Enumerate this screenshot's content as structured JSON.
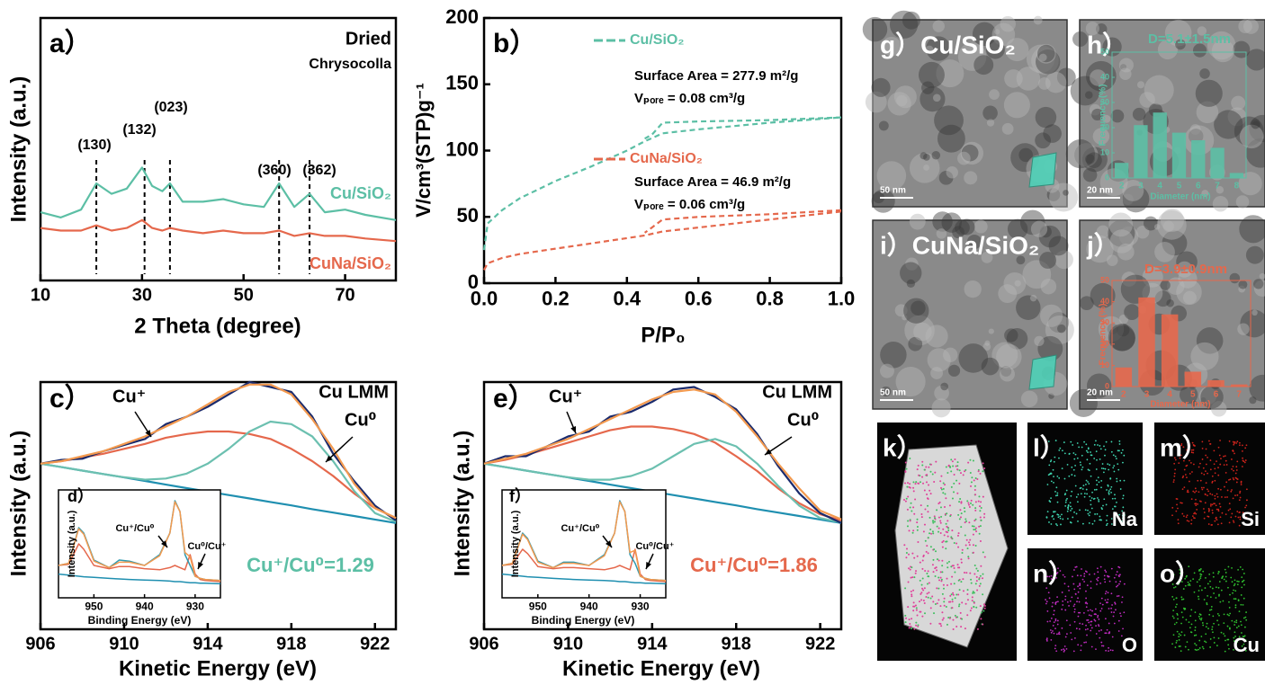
{
  "chart_data": [
    {
      "type": "line",
      "label": "a）",
      "title": "Dried",
      "annotation": "Chrysocolla",
      "xlabel": "2 Theta (degree)",
      "ylabel": "Intensity (a.u.)",
      "xlim": [
        10,
        80
      ],
      "xticks": [
        10,
        30,
        50,
        70
      ],
      "ylim": [
        0,
        100
      ],
      "x": [
        10,
        14,
        18,
        21,
        24,
        27,
        30,
        32,
        34,
        35.5,
        38,
        42,
        46,
        50,
        54,
        57,
        60,
        63,
        66,
        70,
        74,
        80
      ],
      "series": [
        {
          "name": "Cu/SiO₂",
          "color": "#5cbfa5",
          "values": [
            26,
            24,
            27,
            37,
            33,
            35,
            43,
            36,
            34,
            37,
            30,
            30,
            31,
            29,
            28,
            37,
            28,
            33,
            26,
            27,
            25,
            23
          ]
        },
        {
          "name": "CuNa/SiO₂",
          "color": "#e5684c",
          "values": [
            20,
            19,
            19,
            21,
            19,
            20,
            23,
            20,
            19,
            20,
            19,
            18,
            19,
            18,
            18,
            19,
            17,
            18,
            17,
            17,
            16,
            15
          ]
        }
      ],
      "peaks": [
        {
          "x": 21,
          "label": "(130)"
        },
        {
          "x": 30.5,
          "label": "(132)"
        },
        {
          "x": 35.5,
          "label": "(023)"
        },
        {
          "x": 57,
          "label": "(360)"
        },
        {
          "x": 63,
          "label": "(362)"
        }
      ]
    },
    {
      "type": "line",
      "label": "b）",
      "xlabel": "P/P₀",
      "ylabel": "V/cm³(STP)g⁻¹",
      "dashed": true,
      "xlim": [
        0,
        1
      ],
      "xticks": [
        {
          "value": 0,
          "label": "0.0"
        },
        0.2,
        0.4,
        0.6,
        0.8,
        {
          "value": 1,
          "label": "1.0"
        }
      ],
      "ylim": [
        0,
        200
      ],
      "yticks": [
        0,
        50,
        100,
        150,
        200
      ],
      "series": [
        {
          "name": "Cu/SiO₂",
          "color": "#5cbfa5",
          "surface_area": "Surface Area = 277.9 m²/g",
          "pore_volume": "Vₚₒᵣₑ = 0.08 cm³/g",
          "x": [
            0,
            0.01,
            0.05,
            0.1,
            0.2,
            0.3,
            0.4,
            0.45,
            0.5,
            0.6,
            0.8,
            1.0
          ],
          "values": [
            25,
            45,
            55,
            64,
            77,
            88,
            100,
            107,
            113,
            116,
            121,
            125
          ],
          "desorption": {
            "x": [
              1.0,
              0.8,
              0.6,
              0.5,
              0.49,
              0.47,
              0.45
            ],
            "values": [
              125,
              123,
              122,
              121,
              118,
              112,
              109
            ]
          }
        },
        {
          "name": "CuNa/SiO₂",
          "color": "#e5684c",
          "surface_area": "Surface Area = 46.9 m²/g",
          "pore_volume": "Vₚₒᵣₑ = 0.06 cm³/g",
          "x": [
            0,
            0.01,
            0.05,
            0.1,
            0.2,
            0.3,
            0.4,
            0.45,
            0.5,
            0.6,
            0.8,
            1.0
          ],
          "values": [
            10,
            15,
            19,
            22,
            26,
            30,
            34,
            36,
            39,
            42,
            48,
            54
          ],
          "desorption": {
            "x": [
              1.0,
              0.8,
              0.6,
              0.5,
              0.49,
              0.47,
              0.45
            ],
            "values": [
              55,
              52,
              50,
              48,
              46,
              42,
              38
            ]
          }
        }
      ]
    },
    {
      "type": "line",
      "label": "c）",
      "xlabel": "Kinetic Energy (eV)",
      "ylabel": "Intensity (a.u.)",
      "annotations": [
        "Cu LMM",
        "Cu⁺",
        "Cu⁰",
        "Cu⁺/Cu⁰=1.29"
      ],
      "xlim": [
        906,
        923
      ],
      "xticks": [
        906,
        910,
        914,
        918,
        922
      ],
      "ylim": [
        0,
        100
      ],
      "x": [
        906,
        907,
        908,
        909,
        910,
        911,
        912,
        913,
        914,
        915,
        916,
        917,
        918,
        919,
        920,
        921,
        922,
        923
      ],
      "series": [
        {
          "color": "#1f8fb0",
          "values": [
            67,
            65.6,
            64.2,
            62.8,
            61.4,
            60,
            58.5,
            57.1,
            55.7,
            54.3,
            52.9,
            51.5,
            50.1,
            48.6,
            47.2,
            45.8,
            44.4,
            43
          ]
        },
        {
          "color": "#e5684c",
          "values": [
            67,
            68,
            69.5,
            71,
            73,
            75,
            77.5,
            79,
            80,
            80,
            79,
            77,
            73,
            68,
            62,
            55,
            49,
            45
          ]
        },
        {
          "color": "#6cc0b0",
          "values": [
            67,
            65.6,
            64.2,
            62.8,
            61.5,
            60.5,
            61,
            63,
            67,
            73,
            80,
            84,
            83,
            78,
            68,
            56,
            47,
            43.5
          ]
        },
        {
          "color": "#1a2a6c",
          "values": [
            67,
            68.5,
            69,
            72,
            74.5,
            77,
            83,
            86,
            90,
            95,
            100,
            98,
            96,
            86,
            71,
            60,
            50,
            44
          ]
        },
        {
          "color": "#f39a4f",
          "values": [
            67,
            68,
            70,
            72,
            75,
            78,
            82,
            86,
            91,
            96,
            99,
            99,
            95,
            85,
            73,
            59,
            49,
            45
          ]
        }
      ]
    },
    {
      "type": "line",
      "label": "d）",
      "xlabel": "Binding Energy (eV)",
      "ylabel": "Intensity (a.u.)",
      "annotations": [
        "Cu⁺/Cu⁰",
        "Cu⁰/Cu⁺"
      ],
      "xlim": [
        957,
        925
      ],
      "xticks": [
        950,
        940,
        930
      ],
      "ylim": [
        0,
        100
      ],
      "x": [
        957,
        955,
        953,
        952,
        950,
        947,
        945,
        943,
        940,
        937,
        935,
        934,
        933,
        932,
        931,
        930,
        929,
        928,
        925
      ],
      "series": [
        {
          "color": "#1f8fb0",
          "values": [
            22,
            21,
            20,
            19.5,
            19,
            18,
            17.5,
            17,
            16.5,
            16,
            15.5,
            15,
            15,
            14.5,
            14,
            14,
            13.5,
            13.5,
            13
          ]
        },
        {
          "color": "#e5684c",
          "values": [
            30,
            31,
            50,
            45,
            30,
            27,
            29,
            29,
            27,
            26,
            28,
            30,
            28,
            26,
            40,
            22,
            17,
            16,
            15
          ]
        },
        {
          "color": "#2f9ab0",
          "values": [
            30,
            32,
            65,
            60,
            35,
            28,
            35,
            34,
            30,
            40,
            60,
            90,
            80,
            40,
            30,
            20,
            18,
            17,
            16
          ]
        },
        {
          "color": "#f39a4f",
          "values": [
            30,
            32,
            64,
            59,
            34,
            28,
            33,
            33,
            30,
            39,
            60,
            89,
            80,
            42,
            38,
            20,
            18,
            17,
            16
          ]
        }
      ]
    },
    {
      "type": "line",
      "label": "e）",
      "xlabel": "Kinetic Energy (eV)",
      "ylabel": "Intensity (a.u.)",
      "annotations": [
        "Cu LMM",
        "Cu⁺",
        "Cu⁰",
        "Cu⁺/Cu⁰=1.86"
      ],
      "xlim": [
        906,
        923
      ],
      "xticks": [
        906,
        910,
        914,
        918,
        922
      ],
      "ylim": [
        0,
        100
      ],
      "x": [
        906,
        907,
        908,
        909,
        910,
        911,
        912,
        913,
        914,
        915,
        916,
        917,
        918,
        919,
        920,
        921,
        922,
        923
      ],
      "series": [
        {
          "color": "#1f8fb0",
          "values": [
            67,
            65.6,
            64.2,
            62.8,
            61.4,
            60,
            58.5,
            57.1,
            55.7,
            54.3,
            52.9,
            51.5,
            50.1,
            48.6,
            47.2,
            45.8,
            44.4,
            43
          ]
        },
        {
          "color": "#e5684c",
          "values": [
            67,
            68.5,
            70.5,
            73,
            75.5,
            78,
            80.5,
            82,
            82,
            81,
            79,
            75.5,
            70,
            64,
            57,
            51,
            46.5,
            44
          ]
        },
        {
          "color": "#6cc0b0",
          "values": [
            67,
            65.6,
            64.2,
            62.8,
            61.5,
            60.5,
            60.5,
            62,
            65,
            70,
            75,
            77,
            74,
            67,
            58,
            50,
            45,
            43.2
          ]
        },
        {
          "color": "#1a2a6c",
          "values": [
            67,
            70,
            70,
            74,
            78,
            80,
            86,
            88,
            92,
            97,
            98,
            94,
            89,
            79,
            66,
            55,
            47,
            43
          ]
        },
        {
          "color": "#f39a4f",
          "values": [
            67,
            69,
            71,
            74,
            77,
            81,
            85,
            89,
            93,
            96,
            97,
            95,
            88,
            78,
            67,
            57,
            48,
            44.5
          ]
        }
      ]
    },
    {
      "type": "line",
      "label": "f）",
      "xlabel": "Binding Energy (eV)",
      "ylabel": "Intensity (a.u.)",
      "annotations": [
        "Cu⁺/Cu⁰",
        "Cu⁰/Cu⁺"
      ],
      "xlim": [
        957,
        925
      ],
      "xticks": [
        950,
        940,
        930
      ],
      "ylim": [
        0,
        100
      ],
      "x": [
        957,
        955,
        953,
        952,
        950,
        947,
        945,
        943,
        940,
        937,
        935,
        934,
        933,
        932,
        931,
        930,
        929,
        928,
        925
      ],
      "series": [
        {
          "color": "#1f8fb0",
          "values": [
            22,
            21,
            20,
            19.5,
            19,
            18,
            17.5,
            17,
            16.5,
            16,
            15.5,
            15,
            15,
            14.5,
            14,
            14,
            13.5,
            13.5,
            13
          ]
        },
        {
          "color": "#e5684c",
          "values": [
            30,
            31,
            45,
            41,
            29,
            27,
            28,
            28,
            27,
            26,
            28,
            30,
            28,
            26,
            45,
            22,
            17,
            16,
            15
          ]
        },
        {
          "color": "#2f9ab0",
          "values": [
            30,
            32,
            60,
            55,
            34,
            28,
            33,
            33,
            30,
            40,
            60,
            90,
            80,
            40,
            32,
            20,
            18,
            17,
            16
          ]
        },
        {
          "color": "#f39a4f",
          "values": [
            30,
            32,
            59,
            54,
            33,
            28,
            32,
            32,
            30,
            39,
            60,
            89,
            80,
            42,
            44,
            20,
            18,
            17,
            16
          ]
        }
      ]
    },
    {
      "type": "bar",
      "title": "D=5.1±1.5nm",
      "xlabel": "Diameter (nm)",
      "ylabel": "Frequency (%)",
      "color": "#5cbfa5",
      "categories": [
        "2",
        "3",
        "4",
        "5",
        "6",
        "7",
        "8"
      ],
      "values": [
        6,
        21,
        26,
        18,
        15,
        12,
        2
      ],
      "ylim": [
        0,
        50
      ],
      "yticks": [
        0,
        10,
        20,
        30,
        40,
        50
      ]
    },
    {
      "type": "bar",
      "title": "D=3.9±0.9nm",
      "xlabel": "Diameter (nm)",
      "ylabel": "Frequency (%)",
      "color": "#e5684c",
      "categories": [
        "2",
        "3",
        "4",
        "5",
        "6",
        "7"
      ],
      "values": [
        9,
        42,
        34,
        7,
        3,
        1
      ],
      "ylim": [
        0,
        50
      ],
      "yticks": [
        0,
        10,
        20,
        30,
        40,
        50
      ]
    }
  ],
  "images": [
    {
      "label": "g）Cu/SiO₂",
      "scale_bar": "50 nm"
    },
    {
      "label": "h）",
      "scale_bar": "20 nm"
    },
    {
      "label": "i）CuNa/SiO₂",
      "scale_bar": "50 nm"
    },
    {
      "label": "j）",
      "scale_bar": "20 nm"
    },
    {
      "label": "k）"
    },
    {
      "label": "l）",
      "element": "Na"
    },
    {
      "label": "m）",
      "element": "Si"
    },
    {
      "label": "n）",
      "element": "O"
    },
    {
      "label": "o）",
      "element": "Cu"
    }
  ]
}
